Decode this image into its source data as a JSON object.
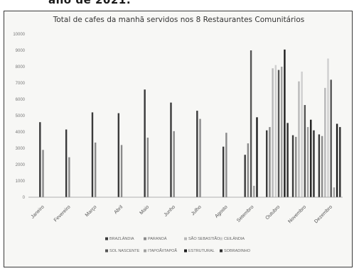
{
  "page": {
    "title": "ano de 2021:"
  },
  "chart_data": {
    "type": "bar",
    "title": "Total de cafes da manhã servidos nos 8 Restaurantes Comunitários",
    "xlabel": "",
    "ylabel": "",
    "ylim": [
      0,
      10000
    ],
    "yticks": [
      "0",
      "1000",
      "2000",
      "3000",
      "4000",
      "5000",
      "6000",
      "7000",
      "8000",
      "9000",
      "10000"
    ],
    "grid": false,
    "legend_position": "bottom",
    "categories": [
      "Janeiro",
      "Fevereiro",
      "Março",
      "Abril",
      "Maio",
      "Junho",
      "Julho",
      "Agosto",
      "Setembro",
      "Outubro",
      "Novembro",
      "Dezembro"
    ],
    "series": [
      {
        "name": "BRAZLÂNDIA",
        "color": "#3a3a3a",
        "values": [
          4600,
          4150,
          5200,
          5150,
          6600,
          5800,
          5300,
          3100,
          2600,
          4100,
          3800,
          3850
        ]
      },
      {
        "name": "PARANOÁ",
        "color": "#8a8a8a",
        "values": [
          2900,
          2450,
          3350,
          3200,
          3650,
          4050,
          4800,
          3950,
          3300,
          4300,
          3700,
          3750
        ]
      },
      {
        "name": "SÃO SEBASTIÃO",
        "color": "#b8b8b8",
        "values": [
          0,
          0,
          0,
          0,
          0,
          0,
          0,
          0,
          0,
          7900,
          7100,
          6700
        ]
      },
      {
        "name": "CEILÂNDIA",
        "color": "#cfcfcf",
        "values": [
          0,
          0,
          0,
          0,
          0,
          0,
          0,
          0,
          0,
          8100,
          7700,
          8500
        ]
      },
      {
        "name": "SOL NASCENTE",
        "color": "#555555",
        "values": [
          0,
          0,
          0,
          0,
          0,
          0,
          0,
          0,
          9000,
          7800,
          5650,
          7200
        ]
      },
      {
        "name": "ITAPOÃ/ITAPOÃ",
        "color": "#a0a0a0",
        "values": [
          0,
          0,
          0,
          0,
          0,
          0,
          0,
          0,
          700,
          8000,
          4300,
          600
        ]
      },
      {
        "name": "ESTRUTURAL",
        "color": "#1e1e1e",
        "values": [
          0,
          0,
          0,
          0,
          0,
          0,
          0,
          0,
          4900,
          9050,
          4750,
          4500
        ]
      },
      {
        "name": "SOBRADINHO",
        "color": "#2f2f2f",
        "values": [
          0,
          0,
          0,
          0,
          0,
          0,
          0,
          0,
          0,
          4550,
          4100,
          4300
        ]
      }
    ]
  }
}
